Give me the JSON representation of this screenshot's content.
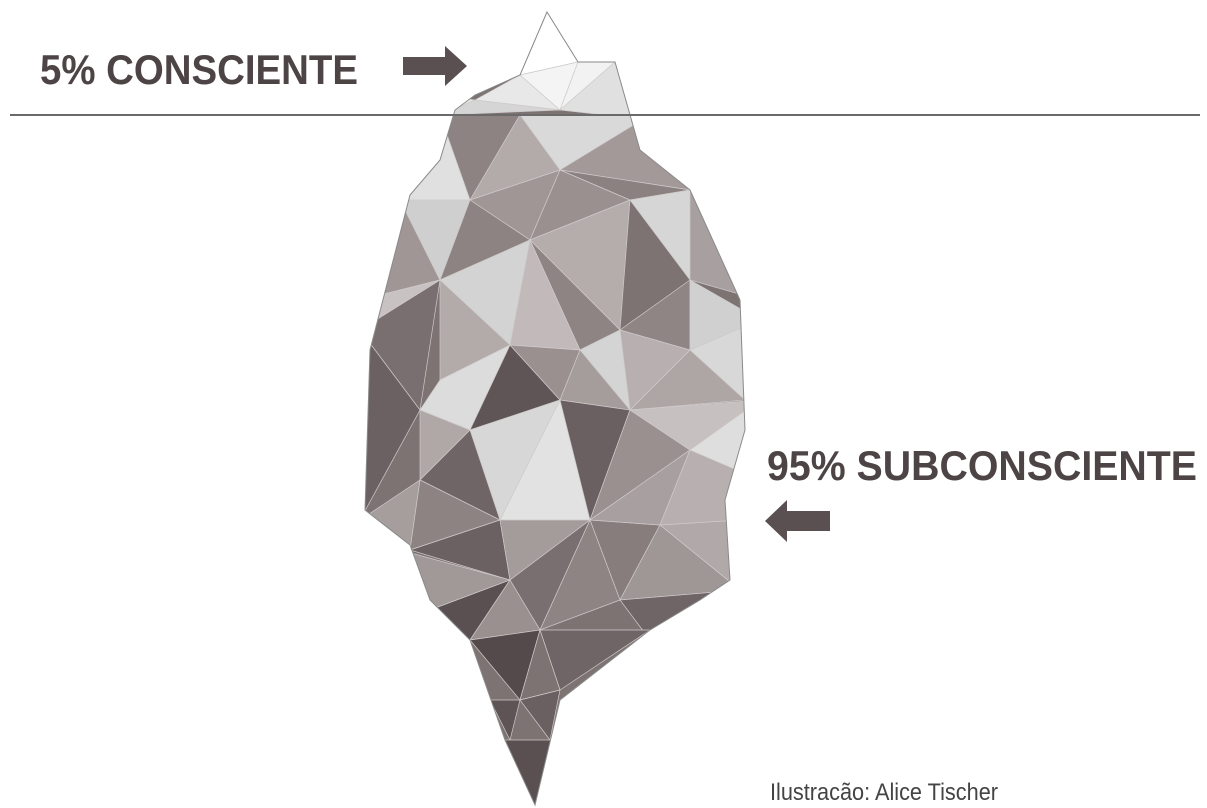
{
  "labels": {
    "top": "5% CONSCIENTE",
    "bottom": "95% SUBCONSCIENTE"
  },
  "credit": "Ilustracão: Alice Tischer"
}
